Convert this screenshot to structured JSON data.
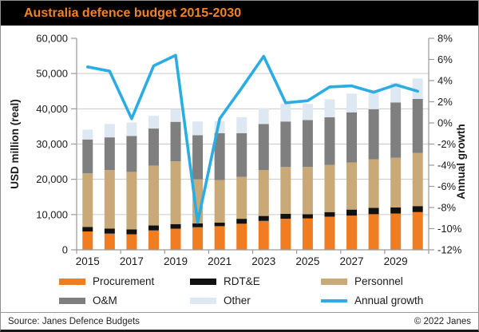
{
  "title": "Australia defence budget 2015-2030",
  "footer": {
    "source": "Source: Janes Defence Budgets",
    "copyright": "© 2022 Janes"
  },
  "colors": {
    "title_text": "#f58220",
    "titlebar_bg": "#000000",
    "gridline": "#c9c9c9",
    "axis": "#9a9a9a",
    "tick_text": "#1a1a1a"
  },
  "chart_data": {
    "type": "bar",
    "subtype": "stacked-bars-with-line-overlay",
    "title": "Australia defence budget 2015-2030",
    "xlabel": "",
    "ylabel": "USD million  (real)",
    "y2label": "Annual growth",
    "ylim": [
      0,
      60000
    ],
    "y2lim": [
      -12,
      8
    ],
    "grid": "horizontal",
    "legend_position": "bottom",
    "categories": [
      2015,
      2016,
      2017,
      2018,
      2019,
      2020,
      2021,
      2022,
      2023,
      2024,
      2025,
      2026,
      2027,
      2028,
      2029,
      2030
    ],
    "xtick_labels": [
      "2015",
      "2017",
      "2019",
      "2021",
      "2023",
      "2025",
      "2027",
      "2029"
    ],
    "ytick_labels": [
      "0",
      "10,000",
      "20,000",
      "30,000",
      "40,000",
      "50,000",
      "60,000"
    ],
    "y2tick_labels": [
      "-12%",
      "-10%",
      "-8%",
      "-6%",
      "-4%",
      "-2%",
      "0%",
      "2%",
      "4%",
      "6%",
      "8%"
    ],
    "series": [
      {
        "name": "Procurement",
        "color": "#f07d22",
        "values": [
          5200,
          4600,
          4400,
          5500,
          6000,
          6400,
          6700,
          7400,
          8200,
          8800,
          8900,
          9400,
          9700,
          10100,
          10300,
          10700
        ]
      },
      {
        "name": "RDT&E",
        "color": "#111111",
        "values": [
          1300,
          1400,
          1400,
          1400,
          1300,
          1100,
          1000,
          1400,
          1400,
          1400,
          1200,
          1300,
          1700,
          1800,
          1700,
          1700
        ]
      },
      {
        "name": "Personnel",
        "color": "#c8a977",
        "values": [
          15200,
          16600,
          16300,
          17000,
          17800,
          12500,
          12100,
          11900,
          13000,
          13300,
          13400,
          13400,
          13400,
          13800,
          14100,
          15100
        ]
      },
      {
        "name": "O&M",
        "color": "#7f7f7f",
        "values": [
          9600,
          9300,
          10200,
          10500,
          11200,
          12500,
          13300,
          12400,
          13100,
          12900,
          13300,
          13500,
          14200,
          14200,
          15700,
          15300
        ]
      },
      {
        "name": "Other",
        "color": "#dee8f2",
        "values": [
          2800,
          3800,
          3800,
          3600,
          3600,
          3900,
          3400,
          4500,
          4500,
          5100,
          4600,
          5100,
          5300,
          5500,
          5600,
          5800
        ]
      }
    ],
    "line_series": {
      "name": "Annual growth",
      "color": "#2bace2",
      "values": [
        5.3,
        4.9,
        0.4,
        5.4,
        6.4,
        -9.4,
        0.4,
        3.3,
        6.3,
        1.9,
        2.1,
        3.4,
        3.5,
        2.9,
        3.6,
        3.0
      ]
    },
    "legend_rows": [
      [
        "Procurement",
        "RDT&E",
        "Personnel"
      ],
      [
        "O&M",
        "Other",
        "Annual growth"
      ]
    ]
  }
}
